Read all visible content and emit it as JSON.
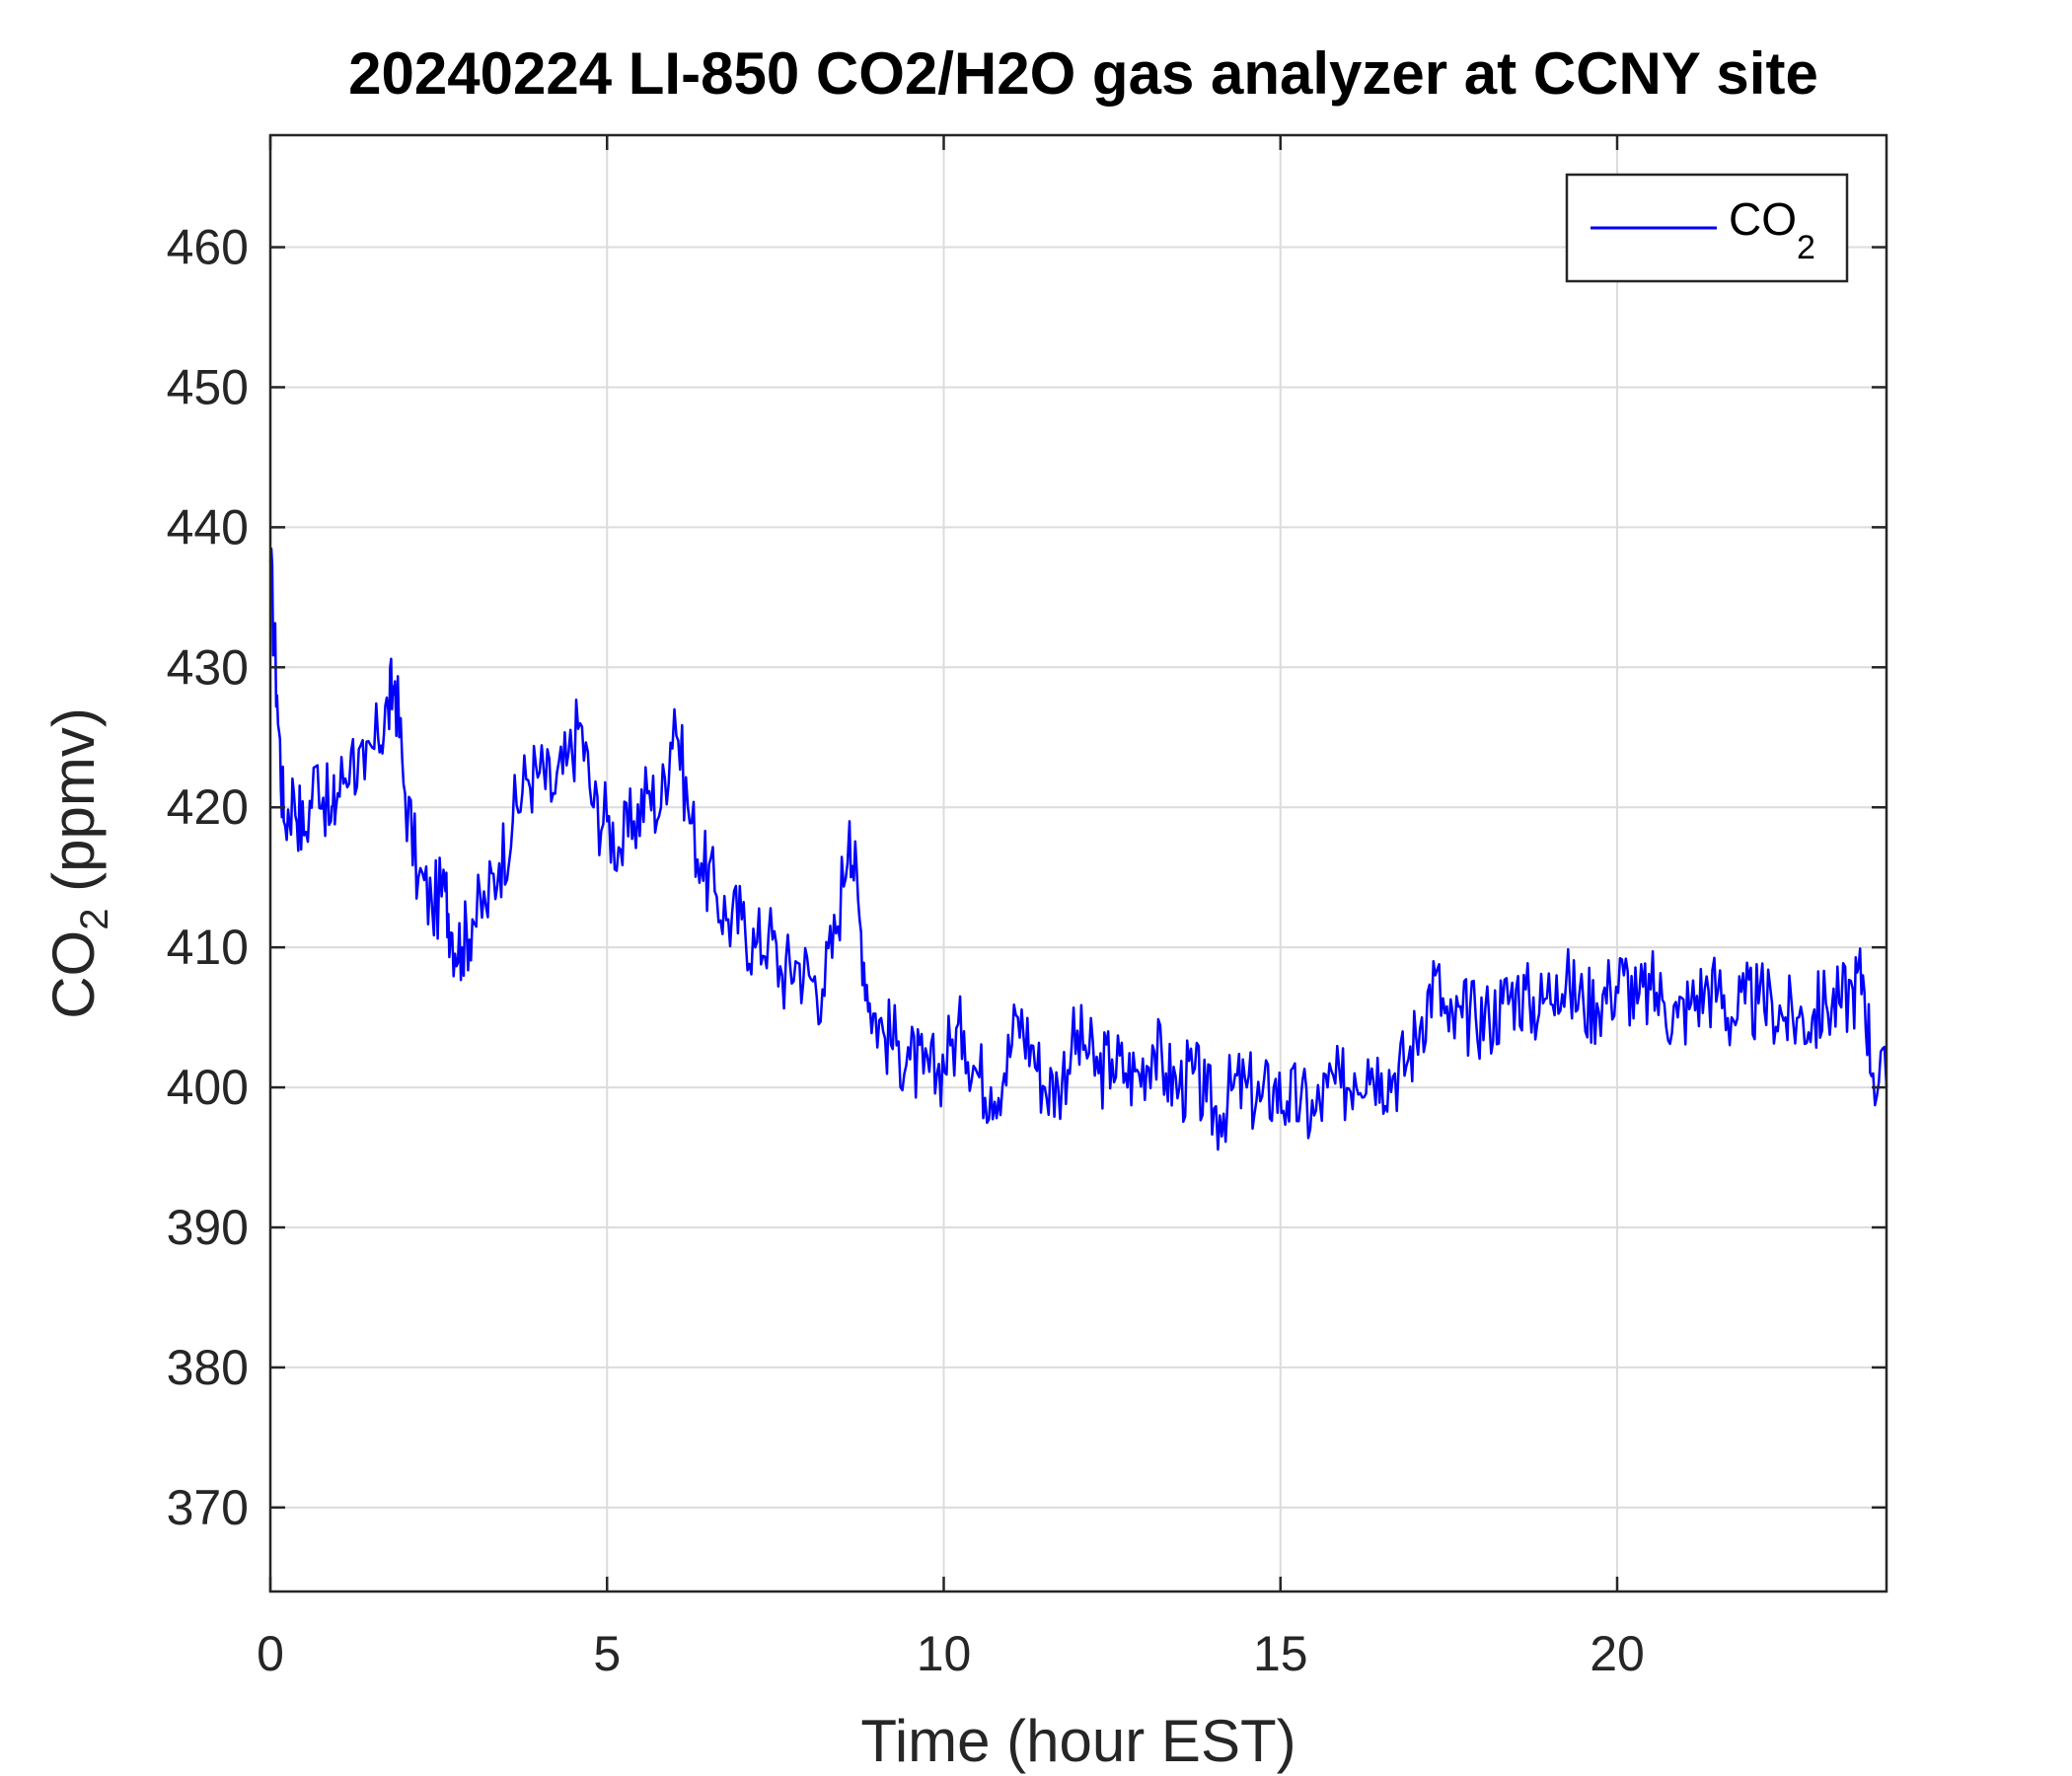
{
  "chart_data": {
    "type": "line",
    "title": "20240224 LI-850 CO2/H2O gas analyzer at CCNY site",
    "xlabel": "Time (hour EST)",
    "ylabel": {
      "base": "CO",
      "sub": "2",
      "rest": " (ppmv)"
    },
    "xlim": [
      0,
      24
    ],
    "ylim": [
      364,
      468
    ],
    "xticks": [
      0,
      5,
      10,
      15,
      20
    ],
    "yticks": [
      370,
      380,
      390,
      400,
      410,
      420,
      430,
      440,
      450,
      460
    ],
    "grid": true,
    "legend": {
      "placement": "top-right",
      "label_base": "CO",
      "label_sub": "2"
    },
    "series": [
      {
        "name": "CO2",
        "color": "#0000FF",
        "x": [
          0.0,
          0.1,
          0.2,
          0.35,
          0.5,
          0.7,
          0.9,
          1.0,
          1.2,
          1.4,
          1.6,
          1.75,
          1.85,
          2.0,
          2.2,
          2.4,
          2.6,
          2.7,
          2.85,
          3.0,
          3.2,
          3.4,
          3.6,
          3.8,
          4.0,
          4.2,
          4.4,
          4.6,
          4.8,
          5.0,
          5.2,
          5.4,
          5.6,
          5.8,
          6.0,
          6.2,
          6.4,
          6.6,
          6.8,
          7.0,
          7.2,
          7.4,
          7.6,
          7.8,
          8.0,
          8.2,
          8.4,
          8.6,
          8.75,
          8.9,
          9.1,
          9.3,
          9.5,
          9.7,
          9.9,
          10.1,
          10.3,
          10.5,
          10.7,
          10.9,
          11.1,
          11.3,
          11.5,
          11.7,
          11.9,
          12.1,
          12.3,
          12.5,
          12.7,
          12.9,
          13.1,
          13.3,
          13.5,
          13.7,
          13.9,
          14.1,
          14.3,
          14.5,
          14.7,
          14.9,
          15.1,
          15.3,
          15.5,
          15.7,
          15.9,
          16.1,
          16.3,
          16.5,
          16.7,
          16.9,
          17.1,
          17.3,
          17.5,
          17.7,
          17.9,
          18.1,
          18.3,
          18.5,
          18.7,
          18.9,
          19.1,
          19.3,
          19.5,
          19.7,
          19.9,
          20.1,
          20.3,
          20.5,
          20.7,
          20.9,
          21.1,
          21.3,
          21.5,
          21.7,
          21.9,
          22.1,
          22.3,
          22.5,
          22.7,
          22.9,
          23.1,
          23.3,
          23.5,
          23.65,
          23.8,
          24.0
        ],
        "y": [
          437.5,
          428,
          419,
          421,
          418,
          423,
          419,
          421,
          424,
          422,
          425,
          427,
          429,
          421,
          415,
          413,
          414,
          411,
          410,
          412,
          413,
          416,
          419,
          422,
          422.5,
          421,
          423,
          426,
          420,
          419,
          417,
          419,
          421,
          420,
          427,
          420,
          416,
          414,
          412,
          412,
          410,
          411,
          408,
          409,
          408,
          407,
          411,
          419,
          412,
          406,
          404,
          403,
          402,
          401,
          401,
          403,
          404,
          401,
          400,
          401,
          405,
          403,
          400,
          400,
          403,
          403,
          401,
          402,
          401,
          401,
          403,
          401,
          400,
          401,
          399,
          398,
          400,
          400,
          399,
          400,
          399,
          399,
          398,
          400,
          400,
          401,
          402,
          401,
          401,
          402,
          405,
          408,
          404,
          405,
          405,
          405,
          406,
          407,
          406,
          406,
          408,
          407,
          406,
          406,
          407,
          408,
          406,
          407,
          406,
          405,
          406,
          407,
          407,
          405,
          406,
          406,
          406,
          405,
          405,
          405,
          406,
          406,
          407,
          408,
          401,
          400
        ]
      }
    ]
  }
}
